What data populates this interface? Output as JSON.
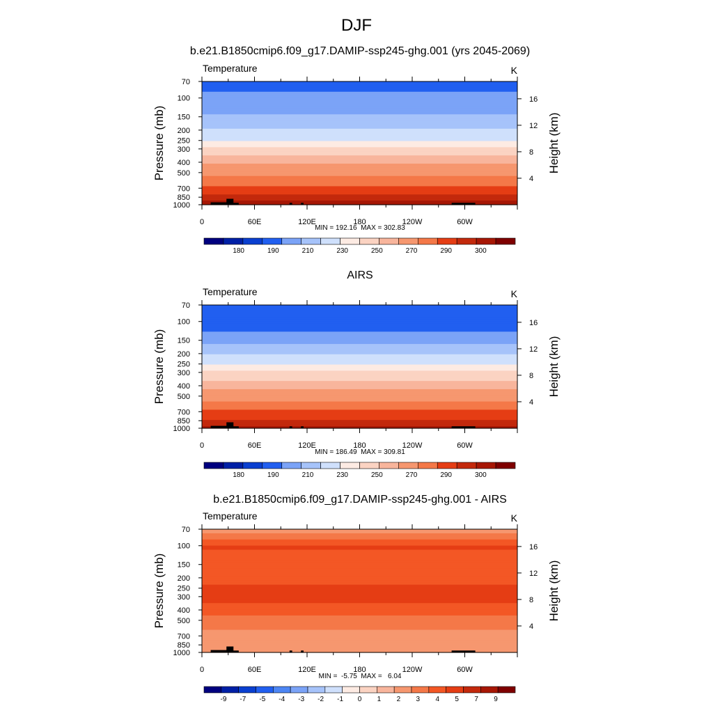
{
  "figure": {
    "title": "DJF"
  },
  "colorbar_colors": [
    "#00007f",
    "#0020a6",
    "#0a3fd0",
    "#215ff0",
    "#4d86f4",
    "#7ba3f7",
    "#a6c3fa",
    "#cfe0fc",
    "#fdebe3",
    "#fbd3c2",
    "#f8b59c",
    "#f6976f",
    "#f47848",
    "#f35725",
    "#e53d14",
    "#c3290c",
    "#a71705",
    "#7f0000"
  ],
  "chart_data": [
    {
      "type": "heatmap",
      "title": "b.e21.B1850cmip6.f09_g17.DAMIP-ssp245-ghg.001 (yrs 2045-2069)",
      "left_label": "Temperature",
      "right_label": "K",
      "xlabel": "",
      "ylabel": "Pressure (mb)",
      "y2label": "Height (km)",
      "xticks": [
        "0",
        "60E",
        "120E",
        "180",
        "120W",
        "60W"
      ],
      "xtick_values": [
        0,
        60,
        120,
        180,
        240,
        300
      ],
      "xlim": [
        0,
        360
      ],
      "yticks": [
        70,
        100,
        150,
        200,
        250,
        300,
        400,
        500,
        700,
        850,
        1000
      ],
      "ytick_labels": [
        "70",
        "100",
        "150",
        "200",
        "250",
        "300",
        "400",
        "500",
        "700",
        "850",
        "1000"
      ],
      "ylim": [
        1000,
        70
      ],
      "y2ticks": [
        "4",
        "8",
        "12",
        "16"
      ],
      "y2tick_values": [
        4,
        8,
        12,
        16
      ],
      "stats": "MIN = 192.16  MAX = 302.83",
      "min": 192.16,
      "max": 302.83,
      "levels": [
        175,
        180,
        185,
        190,
        200,
        210,
        220,
        230,
        240,
        250,
        260,
        270,
        280,
        290,
        295,
        300,
        305
      ],
      "colorbar_labels": [
        "180",
        "190",
        "210",
        "230",
        "250",
        "270",
        "290",
        "300"
      ],
      "profile": [
        [
          70,
          197
        ],
        [
          100,
          202
        ],
        [
          150,
          212
        ],
        [
          200,
          222
        ],
        [
          250,
          230
        ],
        [
          300,
          242
        ],
        [
          400,
          258
        ],
        [
          500,
          268
        ],
        [
          700,
          283
        ],
        [
          850,
          292
        ],
        [
          1000,
          298
        ]
      ]
    },
    {
      "type": "heatmap",
      "title": "AIRS",
      "left_label": "Temperature",
      "right_label": "K",
      "xlabel": "",
      "ylabel": "Pressure (mb)",
      "y2label": "Height (km)",
      "xticks": [
        "0",
        "60E",
        "120E",
        "180",
        "120W",
        "60W"
      ],
      "xtick_values": [
        0,
        60,
        120,
        180,
        240,
        300
      ],
      "xlim": [
        0,
        360
      ],
      "yticks": [
        70,
        100,
        150,
        200,
        250,
        300,
        400,
        500,
        700,
        850,
        1000
      ],
      "ytick_labels": [
        "70",
        "100",
        "150",
        "200",
        "250",
        "300",
        "400",
        "500",
        "700",
        "850",
        "1000"
      ],
      "ylim": [
        1000,
        70
      ],
      "y2ticks": [
        "4",
        "8",
        "12",
        "16"
      ],
      "y2tick_values": [
        4,
        8,
        12,
        16
      ],
      "stats": "MIN = 186.49  MAX = 309.81",
      "min": 186.49,
      "max": 309.81,
      "levels": [
        175,
        180,
        185,
        190,
        200,
        210,
        220,
        230,
        240,
        250,
        260,
        270,
        280,
        290,
        295,
        300,
        305
      ],
      "colorbar_labels": [
        "180",
        "190",
        "210",
        "230",
        "250",
        "270",
        "290",
        "300"
      ],
      "profile": [
        [
          70,
          195
        ],
        [
          100,
          192
        ],
        [
          150,
          207
        ],
        [
          200,
          219
        ],
        [
          250,
          228
        ],
        [
          300,
          242
        ],
        [
          400,
          256
        ],
        [
          500,
          266
        ],
        [
          700,
          282
        ],
        [
          850,
          291
        ],
        [
          1000,
          298
        ]
      ]
    },
    {
      "type": "heatmap",
      "title": "b.e21.B1850cmip6.f09_g17.DAMIP-ssp245-ghg.001 - AIRS",
      "left_label": "Temperature",
      "right_label": "K",
      "xlabel": "",
      "ylabel": "Pressure (mb)",
      "y2label": "Height (km)",
      "xticks": [
        "0",
        "60E",
        "120E",
        "180",
        "120W",
        "60W"
      ],
      "xtick_values": [
        0,
        60,
        120,
        180,
        240,
        300
      ],
      "xlim": [
        0,
        360
      ],
      "yticks": [
        70,
        100,
        150,
        200,
        250,
        300,
        400,
        500,
        700,
        850,
        1000
      ],
      "ytick_labels": [
        "70",
        "100",
        "150",
        "200",
        "250",
        "300",
        "400",
        "500",
        "700",
        "850",
        "1000"
      ],
      "ylim": [
        1000,
        70
      ],
      "y2ticks": [
        "4",
        "8",
        "12",
        "16"
      ],
      "y2tick_values": [
        4,
        8,
        12,
        16
      ],
      "stats": "MIN =  -5.75  MAX =   6.04",
      "min": -5.75,
      "max": 6.04,
      "levels": [
        -10,
        -9,
        -8,
        -7,
        -6,
        -5,
        -4,
        -3,
        -2,
        -1,
        0,
        1,
        2,
        3,
        4,
        5,
        6,
        8,
        10
      ],
      "colorbar_labels": [
        "-9",
        "-7",
        "-5",
        "-4",
        "-3",
        "-2",
        "-1",
        "0",
        "1",
        "2",
        "3",
        "4",
        "5",
        "7",
        "9"
      ],
      "profile": [
        [
          70,
          1.5
        ],
        [
          100,
          4.2
        ],
        [
          150,
          3.2
        ],
        [
          200,
          3.4
        ],
        [
          250,
          4.3
        ],
        [
          300,
          4.4
        ],
        [
          400,
          3.5
        ],
        [
          500,
          2.6
        ],
        [
          700,
          1.6
        ],
        [
          850,
          1.3
        ],
        [
          1000,
          1.6
        ]
      ]
    }
  ]
}
